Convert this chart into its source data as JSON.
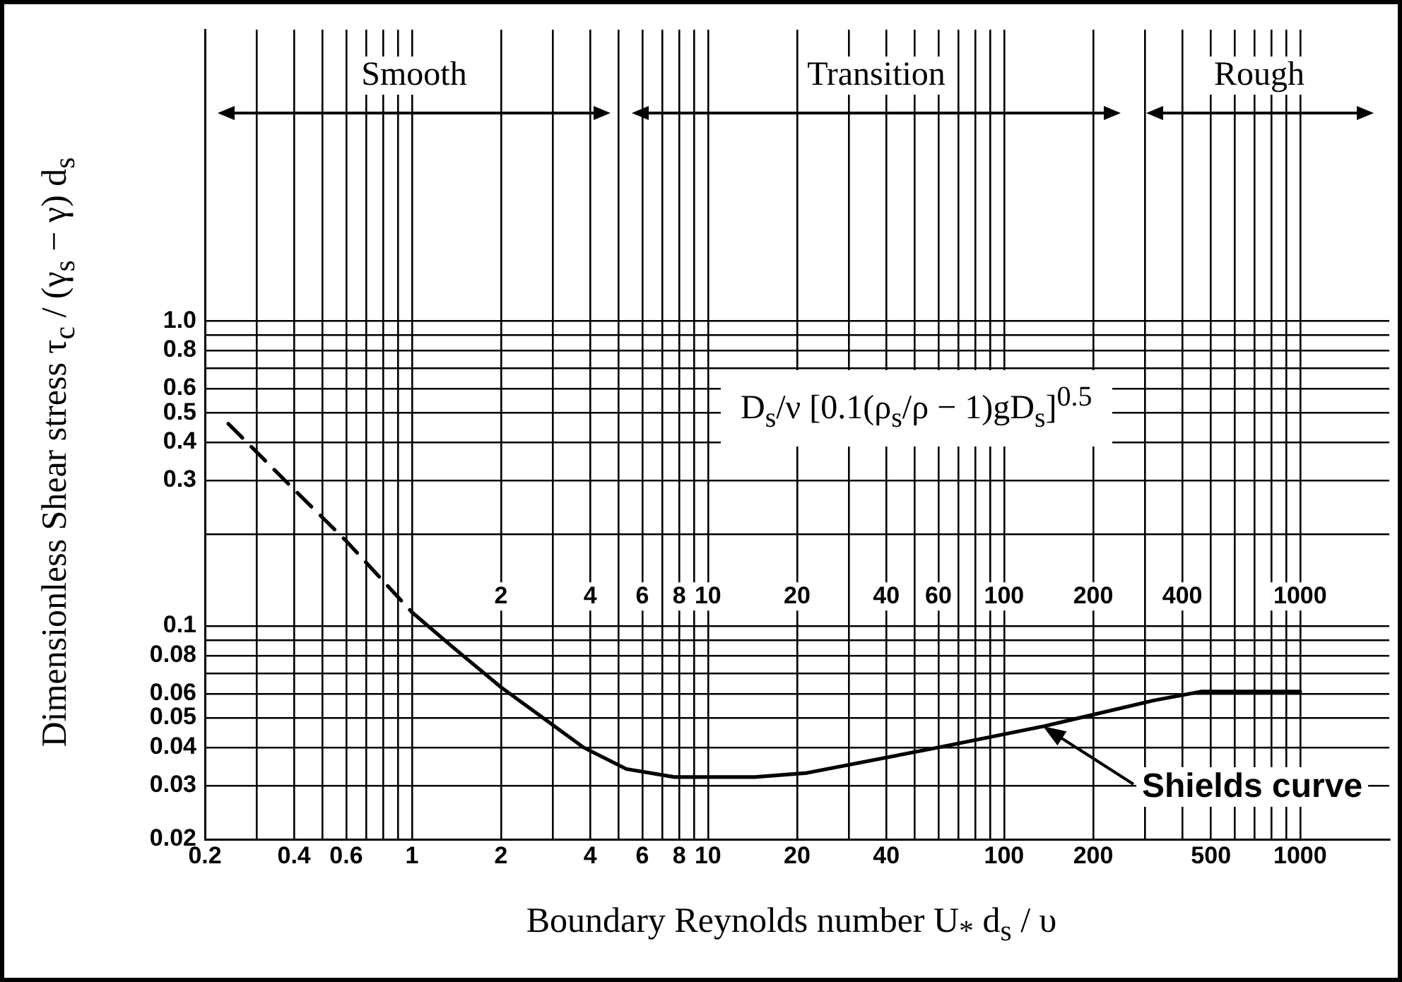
{
  "chart_data": {
    "type": "line",
    "xlabel": "Boundary Reynolds number U$_{*}$ d$_{s}$ / υ",
    "ylabel": "Dimensionless Shear stress τ$_{c}$ / (γ$_{s}$ − γ) d$_{s}$",
    "log": "xy",
    "grid": true,
    "legend": false,
    "marker": "none",
    "xlim": [
      0.2,
      2000
    ],
    "ylim": [
      0.02,
      9
    ],
    "xticks": [
      0.2,
      {
        "value": 0.3,
        "label": null
      },
      0.4,
      {
        "value": 0.5,
        "label": null
      },
      0.6,
      {
        "value": 0.7,
        "label": null
      },
      {
        "value": 0.8,
        "label": null
      },
      {
        "value": 0.9,
        "label": null
      },
      1,
      2,
      {
        "value": 3,
        "label": null
      },
      4,
      {
        "value": 5,
        "label": null
      },
      6,
      {
        "value": 7,
        "label": null
      },
      8,
      {
        "value": 9,
        "label": null
      },
      10,
      20,
      {
        "value": 30,
        "label": null
      },
      40,
      {
        "value": 50,
        "label": null
      },
      {
        "value": 60,
        "label": null
      },
      {
        "value": 70,
        "label": null
      },
      {
        "value": 80,
        "label": null
      },
      {
        "value": 90,
        "label": null
      },
      100,
      200,
      {
        "value": 300,
        "label": null
      },
      {
        "value": 400,
        "label": null
      },
      500,
      {
        "value": 600,
        "label": null
      },
      {
        "value": 700,
        "label": null
      },
      {
        "value": 800,
        "label": null
      },
      {
        "value": 900,
        "label": null
      },
      1000
    ],
    "yticks": [
      0.02,
      0.03,
      0.04,
      0.05,
      0.06,
      {
        "value": 0.07,
        "label": null
      },
      0.08,
      {
        "value": 0.09,
        "label": null
      },
      0.1,
      {
        "value": 0.2,
        "label": null
      },
      0.3,
      0.4,
      0.5,
      0.6,
      {
        "value": 0.7,
        "label": null
      },
      0.8,
      {
        "value": 0.9,
        "label": null
      },
      {
        "value": 1,
        "label": "1.0"
      }
    ],
    "series": [
      {
        "color": "#000000",
        "line_style": "dashed",
        "x": [
          0.24,
          0.4,
          0.6,
          1
        ],
        "values": [
          0.46,
          0.28,
          0.19,
          0.111
        ]
      },
      {
        "color": "#000000",
        "line_style": "solid",
        "x": [
          1,
          1.36,
          2,
          3.8,
          5.3,
          7.7,
          14.4,
          21.6,
          60,
          137,
          320,
          465,
          1000
        ],
        "values": [
          0.111,
          0.086,
          0.063,
          0.04,
          0.034,
          0.032,
          0.032,
          0.033,
          0.04,
          0.047,
          0.057,
          0.061,
          0.061
        ]
      }
    ],
    "annotations": [
      "D$_{s}$/ν [0.1(ρ$_{s}$/ρ − 1)gD$_{s}$]$^{0.5}$",
      "Smooth",
      "Transition",
      "Rough",
      "Shields curve",
      {
        "text": "2",
        "x": 2,
        "y": 0.125
      },
      {
        "text": "4",
        "x": 4,
        "y": 0.125
      },
      {
        "text": "6",
        "x": 6,
        "y": 0.125
      },
      {
        "text": "8",
        "x": 8,
        "y": 0.125
      },
      {
        "text": "10",
        "x": 10,
        "y": 0.125
      },
      {
        "text": "20",
        "x": 20,
        "y": 0.125
      },
      {
        "text": "40",
        "x": 40,
        "y": 0.125
      },
      {
        "text": "60",
        "x": 60,
        "y": 0.125
      },
      {
        "text": "100",
        "x": 100,
        "y": 0.125
      },
      {
        "text": "200",
        "x": 200,
        "y": 0.125
      },
      {
        "text": "400",
        "x": 400,
        "y": 0.125
      },
      {
        "text": "1000",
        "x": 1000,
        "y": 0.125
      }
    ]
  }
}
